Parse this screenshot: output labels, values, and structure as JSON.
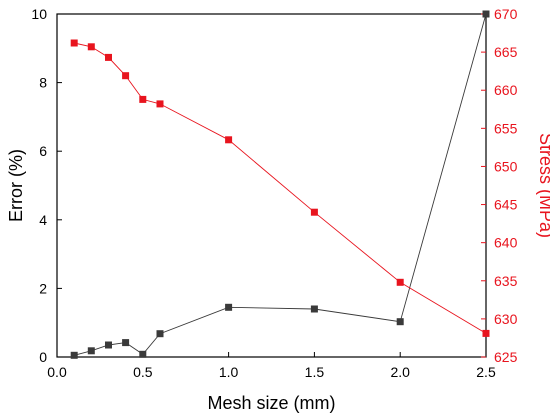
{
  "chart_data": {
    "type": "line",
    "xlabel": "Mesh size (mm)",
    "ylabel_left": "Error (%)",
    "ylabel_right": "Stress (MPa)",
    "xlim": [
      0.0,
      2.5
    ],
    "ylim_left": [
      0,
      10
    ],
    "ylim_right": [
      625,
      670
    ],
    "x_ticks": [
      "0.0",
      "0.5",
      "1.0",
      "1.5",
      "2.0",
      "2.5"
    ],
    "y_left_ticks": [
      "0",
      "2",
      "4",
      "6",
      "8",
      "10"
    ],
    "y_right_ticks": [
      "625",
      "630",
      "635",
      "640",
      "645",
      "650",
      "655",
      "660",
      "665",
      "670"
    ],
    "grid": false,
    "legend": "none",
    "series": [
      {
        "axis": "left",
        "color": "#3a3a3a",
        "marker": "square",
        "x": [
          0.1,
          0.2,
          0.3,
          0.4,
          0.5,
          0.6,
          1.0,
          1.5,
          2.0,
          2.5
        ],
        "y": [
          0.05,
          0.18,
          0.35,
          0.42,
          0.08,
          0.68,
          1.45,
          1.4,
          1.03,
          10.0
        ]
      },
      {
        "axis": "right",
        "color": "#e8141e",
        "marker": "square",
        "x": [
          0.1,
          0.2,
          0.3,
          0.4,
          0.5,
          0.6,
          1.0,
          1.5,
          2.0,
          2.5
        ],
        "y": [
          666.2,
          665.7,
          664.3,
          661.9,
          658.8,
          658.2,
          653.5,
          644.0,
          634.8,
          628.1
        ]
      }
    ]
  }
}
